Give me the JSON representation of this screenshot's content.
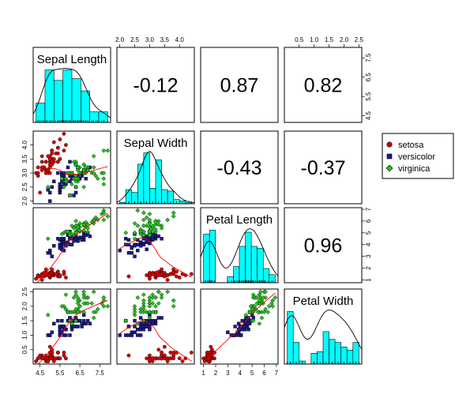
{
  "chart_data": {
    "type": "scatter",
    "variables": [
      "Sepal Length",
      "Sepal Width",
      "Petal Length",
      "Petal Width"
    ],
    "ranges": [
      [
        4.3,
        7.9
      ],
      [
        2.0,
        4.4
      ],
      [
        1.0,
        6.9
      ],
      [
        0.1,
        2.5
      ]
    ],
    "ticks": [
      [
        4.5,
        5.5,
        6.5,
        7.5
      ],
      [
        2.0,
        2.5,
        3.0,
        3.5,
        4.0
      ],
      [
        1,
        2,
        3,
        4,
        5,
        6,
        7
      ],
      [
        0.5,
        1.0,
        1.5,
        2.0,
        2.5
      ]
    ],
    "correlations": [
      [
        "",
        "-0.12",
        "0.87",
        "0.82"
      ],
      [
        "",
        "",
        "-0.43",
        "-0.37"
      ],
      [
        "",
        "",
        "",
        "0.96"
      ],
      [
        "",
        "",
        "",
        ""
      ]
    ],
    "legend": {
      "position": "right",
      "entries": [
        {
          "label": "setosa",
          "color": "#d40000",
          "shape": "circle"
        },
        {
          "label": "versicolor",
          "color": "#1a1a8c",
          "shape": "square"
        },
        {
          "label": "virginica",
          "color": "#22c41c",
          "shape": "diamond"
        }
      ]
    },
    "histogram_color": "#00ffff",
    "fit_line_color": "#ff0000",
    "series": [
      {
        "name": "setosa",
        "points": [
          [
            5.1,
            3.5,
            1.4,
            0.2
          ],
          [
            4.9,
            3.0,
            1.4,
            0.2
          ],
          [
            4.7,
            3.2,
            1.3,
            0.2
          ],
          [
            4.6,
            3.1,
            1.5,
            0.2
          ],
          [
            5.0,
            3.6,
            1.4,
            0.2
          ],
          [
            5.4,
            3.9,
            1.7,
            0.4
          ],
          [
            4.6,
            3.4,
            1.4,
            0.3
          ],
          [
            5.0,
            3.4,
            1.5,
            0.2
          ],
          [
            4.4,
            2.9,
            1.4,
            0.2
          ],
          [
            4.9,
            3.1,
            1.5,
            0.1
          ],
          [
            5.4,
            3.7,
            1.5,
            0.2
          ],
          [
            4.8,
            3.4,
            1.6,
            0.2
          ],
          [
            4.8,
            3.0,
            1.4,
            0.1
          ],
          [
            4.3,
            3.0,
            1.1,
            0.1
          ],
          [
            5.8,
            4.0,
            1.2,
            0.2
          ],
          [
            5.7,
            4.4,
            1.5,
            0.4
          ],
          [
            5.4,
            3.9,
            1.3,
            0.4
          ],
          [
            5.1,
            3.5,
            1.4,
            0.3
          ],
          [
            5.7,
            3.8,
            1.7,
            0.3
          ],
          [
            5.1,
            3.8,
            1.5,
            0.3
          ],
          [
            5.4,
            3.4,
            1.7,
            0.2
          ],
          [
            5.1,
            3.7,
            1.5,
            0.4
          ],
          [
            4.6,
            3.6,
            1.0,
            0.2
          ],
          [
            5.1,
            3.3,
            1.7,
            0.5
          ],
          [
            4.8,
            3.4,
            1.9,
            0.2
          ],
          [
            5.0,
            3.0,
            1.6,
            0.2
          ],
          [
            5.0,
            3.4,
            1.6,
            0.4
          ],
          [
            5.2,
            3.5,
            1.5,
            0.2
          ],
          [
            5.2,
            3.4,
            1.4,
            0.2
          ],
          [
            4.7,
            3.2,
            1.6,
            0.2
          ],
          [
            4.8,
            3.1,
            1.6,
            0.2
          ],
          [
            5.4,
            3.4,
            1.5,
            0.4
          ],
          [
            5.2,
            4.1,
            1.5,
            0.1
          ],
          [
            5.5,
            4.2,
            1.4,
            0.2
          ],
          [
            4.9,
            3.1,
            1.5,
            0.2
          ],
          [
            5.0,
            3.2,
            1.2,
            0.2
          ],
          [
            5.5,
            3.5,
            1.3,
            0.2
          ],
          [
            4.9,
            3.6,
            1.4,
            0.1
          ],
          [
            4.4,
            3.0,
            1.3,
            0.2
          ],
          [
            5.1,
            3.4,
            1.5,
            0.2
          ],
          [
            5.0,
            3.5,
            1.3,
            0.3
          ],
          [
            4.5,
            2.3,
            1.3,
            0.3
          ],
          [
            4.4,
            3.2,
            1.3,
            0.2
          ],
          [
            5.0,
            3.5,
            1.6,
            0.6
          ],
          [
            5.1,
            3.8,
            1.9,
            0.4
          ],
          [
            4.8,
            3.0,
            1.4,
            0.3
          ],
          [
            5.1,
            3.8,
            1.6,
            0.2
          ],
          [
            4.6,
            3.2,
            1.4,
            0.2
          ],
          [
            5.3,
            3.7,
            1.5,
            0.2
          ],
          [
            5.0,
            3.3,
            1.4,
            0.2
          ]
        ]
      },
      {
        "name": "versicolor",
        "points": [
          [
            7.0,
            3.2,
            4.7,
            1.4
          ],
          [
            6.4,
            3.2,
            4.5,
            1.5
          ],
          [
            6.9,
            3.1,
            4.9,
            1.5
          ],
          [
            5.5,
            2.3,
            4.0,
            1.3
          ],
          [
            6.5,
            2.8,
            4.6,
            1.5
          ],
          [
            5.7,
            2.8,
            4.5,
            1.3
          ],
          [
            6.3,
            3.3,
            4.7,
            1.6
          ],
          [
            4.9,
            2.4,
            3.3,
            1.0
          ],
          [
            6.6,
            2.9,
            4.6,
            1.3
          ],
          [
            5.2,
            2.7,
            3.9,
            1.4
          ],
          [
            5.0,
            2.0,
            3.5,
            1.0
          ],
          [
            5.9,
            3.0,
            4.2,
            1.5
          ],
          [
            6.0,
            2.2,
            4.0,
            1.0
          ],
          [
            6.1,
            2.9,
            4.7,
            1.4
          ],
          [
            5.6,
            2.9,
            3.6,
            1.3
          ],
          [
            6.7,
            3.1,
            4.4,
            1.4
          ],
          [
            5.6,
            3.0,
            4.5,
            1.5
          ],
          [
            5.8,
            2.7,
            4.1,
            1.0
          ],
          [
            6.2,
            2.2,
            4.5,
            1.5
          ],
          [
            5.6,
            2.5,
            3.9,
            1.1
          ],
          [
            5.9,
            3.2,
            4.8,
            1.8
          ],
          [
            6.1,
            2.8,
            4.0,
            1.3
          ],
          [
            6.3,
            2.5,
            4.9,
            1.5
          ],
          [
            6.1,
            2.8,
            4.7,
            1.2
          ],
          [
            6.4,
            2.9,
            4.3,
            1.3
          ],
          [
            6.6,
            3.0,
            4.4,
            1.4
          ],
          [
            6.8,
            2.8,
            4.8,
            1.4
          ],
          [
            6.7,
            3.0,
            5.0,
            1.7
          ],
          [
            6.0,
            2.9,
            4.5,
            1.5
          ],
          [
            5.7,
            2.6,
            3.5,
            1.0
          ],
          [
            5.5,
            2.4,
            3.8,
            1.1
          ],
          [
            5.5,
            2.4,
            3.7,
            1.0
          ],
          [
            5.8,
            2.7,
            3.9,
            1.2
          ],
          [
            6.0,
            2.7,
            5.1,
            1.6
          ],
          [
            5.4,
            3.0,
            4.5,
            1.5
          ],
          [
            6.0,
            3.4,
            4.5,
            1.6
          ],
          [
            6.7,
            3.1,
            4.7,
            1.5
          ],
          [
            6.3,
            2.3,
            4.4,
            1.3
          ],
          [
            5.6,
            3.0,
            4.1,
            1.3
          ],
          [
            5.5,
            2.5,
            4.0,
            1.3
          ],
          [
            5.5,
            2.6,
            4.4,
            1.2
          ],
          [
            6.1,
            3.0,
            4.6,
            1.4
          ],
          [
            5.8,
            2.6,
            4.0,
            1.2
          ],
          [
            5.0,
            2.3,
            3.3,
            1.0
          ],
          [
            5.6,
            2.7,
            4.2,
            1.3
          ],
          [
            5.7,
            3.0,
            4.2,
            1.2
          ],
          [
            5.7,
            2.9,
            4.2,
            1.3
          ],
          [
            6.2,
            2.9,
            4.3,
            1.3
          ],
          [
            5.1,
            2.5,
            3.0,
            1.1
          ],
          [
            5.7,
            2.8,
            4.1,
            1.3
          ]
        ]
      },
      {
        "name": "virginica",
        "points": [
          [
            6.3,
            3.3,
            6.0,
            2.5
          ],
          [
            5.8,
            2.7,
            5.1,
            1.9
          ],
          [
            7.1,
            3.0,
            5.9,
            2.1
          ],
          [
            6.3,
            2.9,
            5.6,
            1.8
          ],
          [
            6.5,
            3.0,
            5.8,
            2.2
          ],
          [
            7.6,
            3.0,
            6.6,
            2.1
          ],
          [
            4.9,
            2.5,
            4.5,
            1.7
          ],
          [
            7.3,
            2.9,
            6.3,
            1.8
          ],
          [
            6.7,
            2.5,
            5.8,
            1.8
          ],
          [
            7.2,
            3.6,
            6.1,
            2.5
          ],
          [
            6.5,
            3.2,
            5.1,
            2.0
          ],
          [
            6.4,
            2.7,
            5.3,
            1.9
          ],
          [
            6.8,
            3.0,
            5.5,
            2.1
          ],
          [
            5.7,
            2.5,
            5.0,
            2.0
          ],
          [
            5.8,
            2.8,
            5.1,
            2.4
          ],
          [
            6.4,
            3.2,
            5.3,
            2.3
          ],
          [
            6.5,
            3.0,
            5.5,
            1.8
          ],
          [
            7.7,
            3.8,
            6.7,
            2.2
          ],
          [
            7.7,
            2.6,
            6.9,
            2.3
          ],
          [
            6.0,
            2.2,
            5.0,
            1.5
          ],
          [
            6.9,
            3.2,
            5.7,
            2.3
          ],
          [
            5.6,
            2.8,
            4.9,
            2.0
          ],
          [
            7.7,
            2.8,
            6.7,
            2.0
          ],
          [
            6.3,
            2.7,
            4.9,
            1.8
          ],
          [
            6.7,
            3.3,
            5.7,
            2.1
          ],
          [
            7.2,
            3.2,
            6.0,
            1.8
          ],
          [
            6.2,
            2.8,
            4.8,
            1.8
          ],
          [
            6.1,
            3.0,
            4.9,
            1.8
          ],
          [
            6.4,
            2.8,
            5.6,
            2.1
          ],
          [
            7.2,
            3.0,
            5.8,
            1.6
          ],
          [
            7.4,
            2.8,
            6.1,
            1.9
          ],
          [
            7.9,
            3.8,
            6.4,
            2.0
          ],
          [
            6.4,
            2.8,
            5.6,
            2.2
          ],
          [
            6.3,
            2.8,
            5.1,
            1.5
          ],
          [
            6.1,
            2.6,
            5.6,
            1.4
          ],
          [
            7.7,
            3.0,
            6.1,
            2.3
          ],
          [
            6.3,
            3.4,
            5.6,
            2.4
          ],
          [
            6.4,
            3.1,
            5.5,
            1.8
          ],
          [
            6.0,
            3.0,
            4.8,
            1.8
          ],
          [
            6.9,
            3.1,
            5.4,
            2.1
          ],
          [
            6.7,
            3.1,
            5.6,
            2.4
          ],
          [
            6.9,
            3.1,
            5.1,
            2.3
          ],
          [
            5.8,
            2.7,
            5.1,
            1.9
          ],
          [
            6.8,
            3.2,
            5.9,
            2.3
          ],
          [
            6.7,
            3.3,
            5.7,
            2.5
          ],
          [
            6.7,
            3.0,
            5.2,
            2.3
          ],
          [
            6.3,
            2.5,
            5.0,
            1.9
          ],
          [
            6.5,
            3.0,
            5.2,
            2.0
          ],
          [
            6.2,
            3.4,
            5.4,
            2.3
          ],
          [
            5.9,
            3.0,
            5.1,
            1.8
          ]
        ]
      }
    ]
  }
}
